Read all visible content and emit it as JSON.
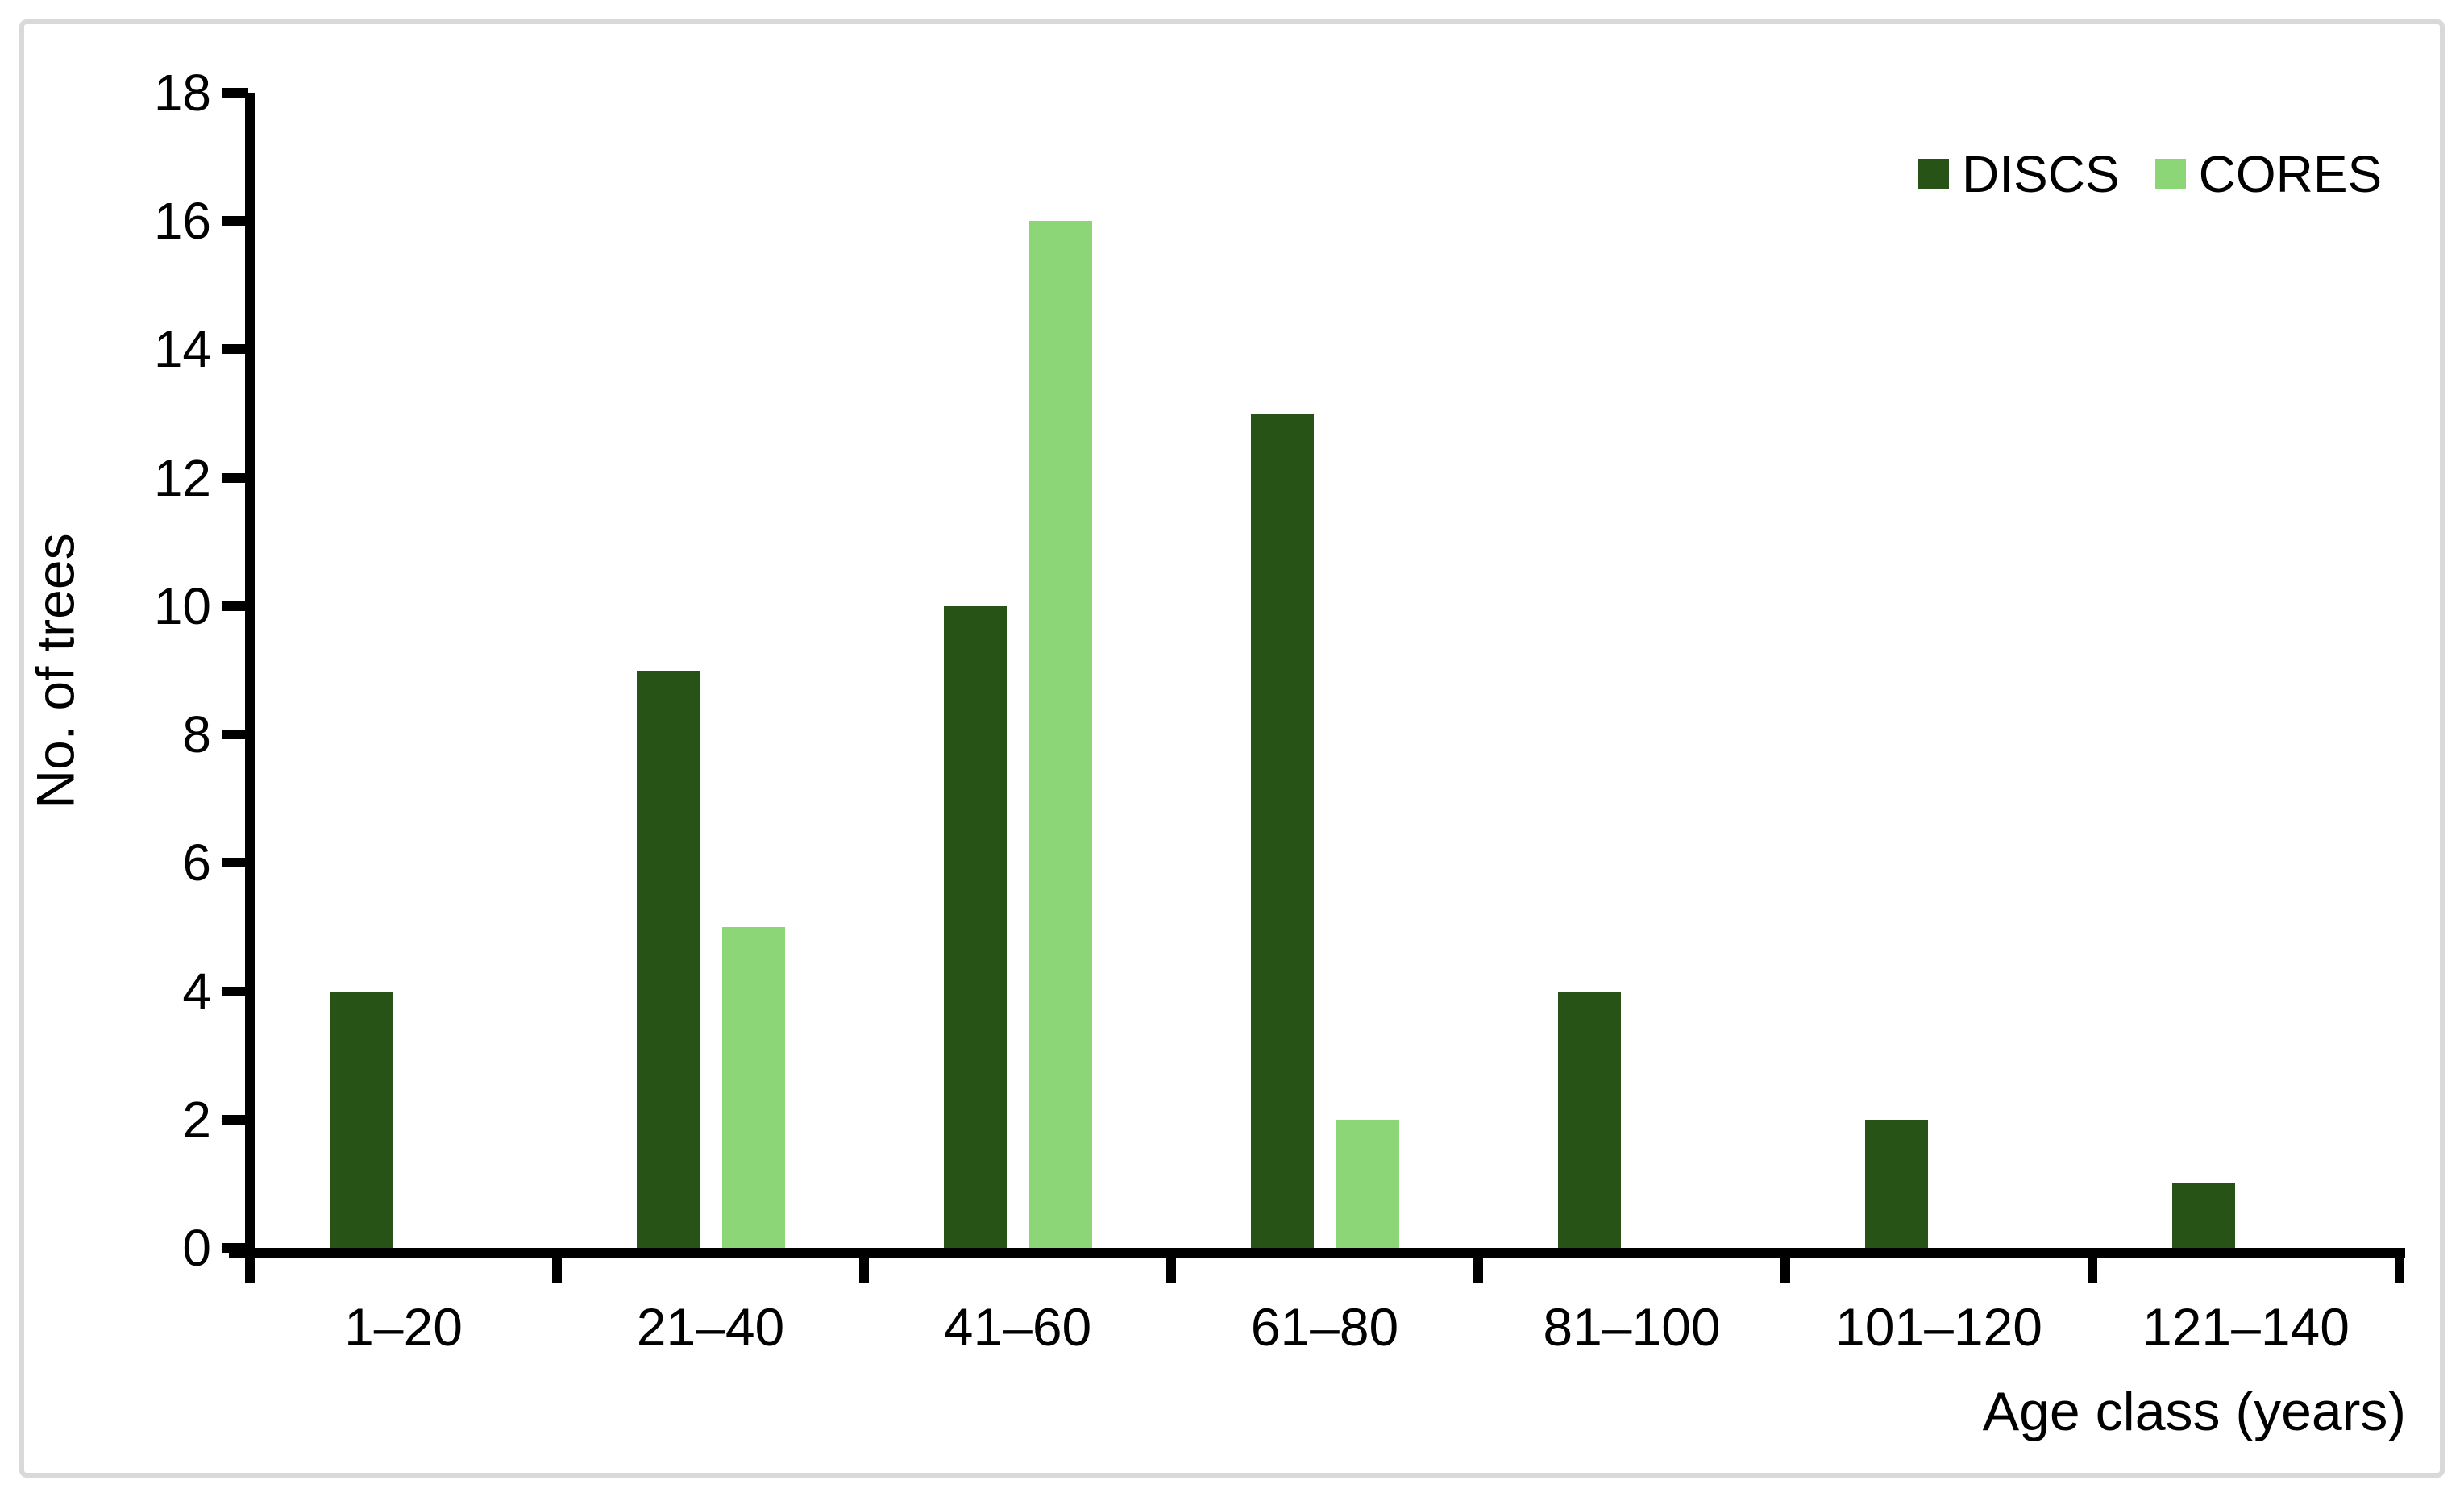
{
  "figure": {
    "background_color": "#ffffff",
    "frame_border_color": "#d9d9d9",
    "axis_color": "#000000",
    "text_color": "#000000"
  },
  "chart_data": {
    "type": "bar",
    "title": "",
    "categories": [
      "1–20",
      "21–40",
      "41–60",
      "61–80",
      "81–100",
      "101–120",
      "121–140"
    ],
    "series": [
      {
        "name": "DISCS",
        "color": "#275416",
        "values": [
          4,
          9,
          10,
          13,
          4,
          2,
          1
        ]
      },
      {
        "name": "CORES",
        "color": "#8CD677",
        "values": [
          0,
          5,
          16,
          2,
          0,
          0,
          0
        ]
      }
    ],
    "xlabel": "Age class (years)",
    "ylabel": "No. of trees",
    "ylim": [
      0,
      18
    ],
    "ytick_step": 2,
    "yticks": [
      0,
      2,
      4,
      6,
      8,
      10,
      12,
      14,
      16,
      18
    ],
    "grid": false,
    "legend_position": "top-right",
    "legend": [
      "DISCS",
      "CORES"
    ]
  }
}
